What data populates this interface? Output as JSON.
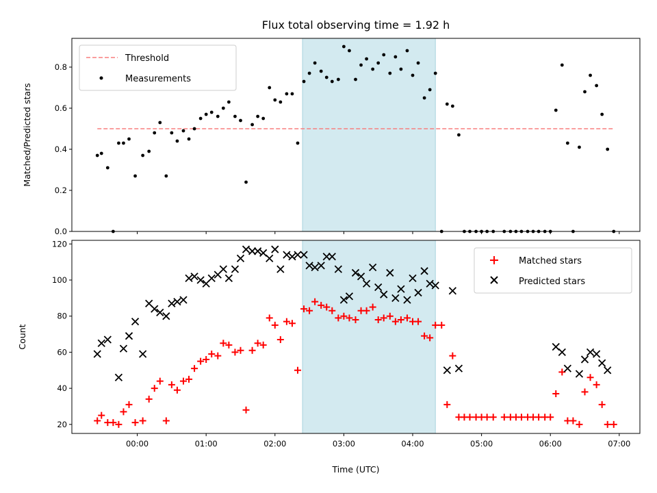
{
  "chart_data": [
    {
      "type": "scatter",
      "panel": "top",
      "title": "Flux total observing time = 1.92 h",
      "xlabel": "",
      "ylabel": "Matched/Predicted stars",
      "ylim": [
        0,
        0.94
      ],
      "yticks": [
        "0.0",
        "0.2",
        "0.4",
        "0.6",
        "0.8"
      ],
      "ytick_values": [
        0,
        0.2,
        0.4,
        0.6,
        0.8
      ],
      "x_units": "hours relative to 00:00 UTC",
      "xlim": [
        -0.95,
        7.3
      ],
      "shaded_span": [
        2.4,
        4.33
      ],
      "shade_color": "#d3eaf0",
      "threshold": {
        "name": "Threshold",
        "y": 0.5,
        "x_range": [
          -0.58,
          6.92
        ],
        "color": "#f87f7f"
      },
      "legend": [
        "Threshold",
        "Measurements"
      ],
      "legend_position": "upper-left",
      "series": [
        {
          "name": "Measurements",
          "color": "#000000",
          "points": [
            [
              -0.58,
              0.37
            ],
            [
              -0.52,
              0.38
            ],
            [
              -0.43,
              0.31
            ],
            [
              -0.35,
              0.0
            ],
            [
              -0.27,
              0.43
            ],
            [
              -0.2,
              0.43
            ],
            [
              -0.12,
              0.45
            ],
            [
              -0.03,
              0.27
            ],
            [
              0.08,
              0.37
            ],
            [
              0.17,
              0.39
            ],
            [
              0.25,
              0.48
            ],
            [
              0.33,
              0.53
            ],
            [
              0.42,
              0.27
            ],
            [
              0.5,
              0.48
            ],
            [
              0.58,
              0.44
            ],
            [
              0.67,
              0.49
            ],
            [
              0.75,
              0.45
            ],
            [
              0.83,
              0.5
            ],
            [
              0.92,
              0.55
            ],
            [
              1.0,
              0.57
            ],
            [
              1.08,
              0.58
            ],
            [
              1.17,
              0.56
            ],
            [
              1.25,
              0.6
            ],
            [
              1.33,
              0.63
            ],
            [
              1.42,
              0.56
            ],
            [
              1.5,
              0.54
            ],
            [
              1.58,
              0.24
            ],
            [
              1.67,
              0.52
            ],
            [
              1.75,
              0.56
            ],
            [
              1.83,
              0.55
            ],
            [
              1.92,
              0.7
            ],
            [
              2.0,
              0.64
            ],
            [
              2.08,
              0.63
            ],
            [
              2.17,
              0.67
            ],
            [
              2.25,
              0.67
            ],
            [
              2.33,
              0.43
            ],
            [
              2.42,
              0.73
            ],
            [
              2.5,
              0.77
            ],
            [
              2.58,
              0.82
            ],
            [
              2.67,
              0.78
            ],
            [
              2.75,
              0.75
            ],
            [
              2.83,
              0.73
            ],
            [
              2.92,
              0.74
            ],
            [
              3.0,
              0.9
            ],
            [
              3.08,
              0.88
            ],
            [
              3.17,
              0.74
            ],
            [
              3.25,
              0.81
            ],
            [
              3.33,
              0.84
            ],
            [
              3.42,
              0.79
            ],
            [
              3.5,
              0.82
            ],
            [
              3.58,
              0.86
            ],
            [
              3.67,
              0.77
            ],
            [
              3.75,
              0.85
            ],
            [
              3.83,
              0.79
            ],
            [
              3.92,
              0.88
            ],
            [
              4.0,
              0.76
            ],
            [
              4.08,
              0.82
            ],
            [
              4.17,
              0.65
            ],
            [
              4.25,
              0.69
            ],
            [
              4.33,
              0.77
            ],
            [
              4.42,
              0.0
            ],
            [
              4.5,
              0.62
            ],
            [
              4.58,
              0.61
            ],
            [
              4.67,
              0.47
            ],
            [
              4.75,
              0.0
            ],
            [
              4.83,
              0.0
            ],
            [
              4.92,
              0.0
            ],
            [
              5.0,
              0.0
            ],
            [
              5.08,
              0.0
            ],
            [
              5.17,
              0.0
            ],
            [
              5.33,
              0.0
            ],
            [
              5.42,
              0.0
            ],
            [
              5.5,
              0.0
            ],
            [
              5.58,
              0.0
            ],
            [
              5.67,
              0.0
            ],
            [
              5.75,
              0.0
            ],
            [
              5.83,
              0.0
            ],
            [
              5.92,
              0.0
            ],
            [
              6.0,
              0.0
            ],
            [
              6.08,
              0.59
            ],
            [
              6.17,
              0.81
            ],
            [
              6.25,
              0.43
            ],
            [
              6.33,
              0.0
            ],
            [
              6.42,
              0.41
            ],
            [
              6.5,
              0.68
            ],
            [
              6.58,
              0.76
            ],
            [
              6.67,
              0.71
            ],
            [
              6.75,
              0.57
            ],
            [
              6.83,
              0.4
            ],
            [
              6.92,
              0.0
            ]
          ]
        }
      ]
    },
    {
      "type": "scatter",
      "panel": "bottom",
      "title": "",
      "xlabel": "Time (UTC)",
      "ylabel": "Count",
      "ylim": [
        15,
        122
      ],
      "yticks": [
        "20",
        "40",
        "60",
        "80",
        "100",
        "120"
      ],
      "ytick_values": [
        20,
        40,
        60,
        80,
        100,
        120
      ],
      "x_units": "hours relative to 00:00 UTC",
      "xlim": [
        -0.95,
        7.3
      ],
      "xticks": [
        "00:00",
        "01:00",
        "02:00",
        "03:00",
        "04:00",
        "05:00",
        "06:00",
        "07:00"
      ],
      "xtick_values": [
        0,
        1,
        2,
        3,
        4,
        5,
        6,
        7
      ],
      "shaded_span": [
        2.4,
        4.33
      ],
      "shade_color": "#d3eaf0",
      "legend": [
        "Matched stars",
        "Predicted stars"
      ],
      "legend_position": "upper-right",
      "series": [
        {
          "name": "Matched stars",
          "marker": "+",
          "color": "#ff0000",
          "points": [
            [
              -0.58,
              22
            ],
            [
              -0.52,
              25
            ],
            [
              -0.43,
              21
            ],
            [
              -0.35,
              21
            ],
            [
              -0.27,
              20
            ],
            [
              -0.2,
              27
            ],
            [
              -0.12,
              31
            ],
            [
              -0.03,
              21
            ],
            [
              0.08,
              22
            ],
            [
              0.17,
              34
            ],
            [
              0.25,
              40
            ],
            [
              0.33,
              44
            ],
            [
              0.42,
              22
            ],
            [
              0.5,
              42
            ],
            [
              0.58,
              39
            ],
            [
              0.67,
              44
            ],
            [
              0.75,
              45
            ],
            [
              0.83,
              51
            ],
            [
              0.92,
              55
            ],
            [
              1.0,
              56
            ],
            [
              1.08,
              59
            ],
            [
              1.17,
              58
            ],
            [
              1.25,
              65
            ],
            [
              1.33,
              64
            ],
            [
              1.42,
              60
            ],
            [
              1.5,
              61
            ],
            [
              1.58,
              28
            ],
            [
              1.67,
              61
            ],
            [
              1.75,
              65
            ],
            [
              1.83,
              64
            ],
            [
              1.92,
              79
            ],
            [
              2.0,
              75
            ],
            [
              2.08,
              67
            ],
            [
              2.17,
              77
            ],
            [
              2.25,
              76
            ],
            [
              2.33,
              50
            ],
            [
              2.42,
              84
            ],
            [
              2.5,
              83
            ],
            [
              2.58,
              88
            ],
            [
              2.67,
              86
            ],
            [
              2.75,
              85
            ],
            [
              2.83,
              83
            ],
            [
              2.92,
              79
            ],
            [
              3.0,
              80
            ],
            [
              3.08,
              79
            ],
            [
              3.17,
              78
            ],
            [
              3.25,
              83
            ],
            [
              3.33,
              83
            ],
            [
              3.42,
              85
            ],
            [
              3.5,
              78
            ],
            [
              3.58,
              79
            ],
            [
              3.67,
              80
            ],
            [
              3.75,
              77
            ],
            [
              3.83,
              78
            ],
            [
              3.92,
              79
            ],
            [
              4.0,
              77
            ],
            [
              4.08,
              77
            ],
            [
              4.17,
              69
            ],
            [
              4.25,
              68
            ],
            [
              4.33,
              75
            ],
            [
              4.42,
              75
            ],
            [
              4.5,
              31
            ],
            [
              4.58,
              58
            ],
            [
              4.67,
              24
            ],
            [
              4.75,
              24
            ],
            [
              4.83,
              24
            ],
            [
              4.92,
              24
            ],
            [
              5.0,
              24
            ],
            [
              5.08,
              24
            ],
            [
              5.17,
              24
            ],
            [
              5.33,
              24
            ],
            [
              5.42,
              24
            ],
            [
              5.5,
              24
            ],
            [
              5.58,
              24
            ],
            [
              5.67,
              24
            ],
            [
              5.75,
              24
            ],
            [
              5.83,
              24
            ],
            [
              5.92,
              24
            ],
            [
              6.0,
              24
            ],
            [
              6.08,
              37
            ],
            [
              6.17,
              49
            ],
            [
              6.25,
              22
            ],
            [
              6.33,
              22
            ],
            [
              6.42,
              20
            ],
            [
              6.5,
              38
            ],
            [
              6.58,
              46
            ],
            [
              6.67,
              42
            ],
            [
              6.75,
              31
            ],
            [
              6.83,
              20
            ],
            [
              6.92,
              20
            ]
          ]
        },
        {
          "name": "Predicted stars",
          "marker": "x",
          "color": "#000000",
          "points": [
            [
              -0.58,
              59
            ],
            [
              -0.52,
              65
            ],
            [
              -0.43,
              67
            ],
            [
              -0.27,
              46
            ],
            [
              -0.2,
              62
            ],
            [
              -0.12,
              69
            ],
            [
              -0.03,
              77
            ],
            [
              0.08,
              59
            ],
            [
              0.17,
              87
            ],
            [
              0.25,
              84
            ],
            [
              0.33,
              82
            ],
            [
              0.42,
              80
            ],
            [
              0.5,
              87
            ],
            [
              0.58,
              88
            ],
            [
              0.67,
              89
            ],
            [
              0.75,
              101
            ],
            [
              0.83,
              102
            ],
            [
              0.92,
              100
            ],
            [
              1.0,
              98
            ],
            [
              1.08,
              101
            ],
            [
              1.17,
              103
            ],
            [
              1.25,
              106
            ],
            [
              1.33,
              101
            ],
            [
              1.42,
              106
            ],
            [
              1.5,
              112
            ],
            [
              1.58,
              117
            ],
            [
              1.67,
              116
            ],
            [
              1.75,
              116
            ],
            [
              1.83,
              115
            ],
            [
              1.92,
              112
            ],
            [
              2.0,
              117
            ],
            [
              2.08,
              106
            ],
            [
              2.17,
              114
            ],
            [
              2.25,
              113
            ],
            [
              2.33,
              114
            ],
            [
              2.42,
              114
            ],
            [
              2.5,
              108
            ],
            [
              2.58,
              107
            ],
            [
              2.67,
              108
            ],
            [
              2.75,
              113
            ],
            [
              2.83,
              113
            ],
            [
              2.92,
              106
            ],
            [
              3.0,
              89
            ],
            [
              3.08,
              91
            ],
            [
              3.17,
              104
            ],
            [
              3.25,
              102
            ],
            [
              3.33,
              98
            ],
            [
              3.42,
              107
            ],
            [
              3.5,
              96
            ],
            [
              3.58,
              92
            ],
            [
              3.67,
              104
            ],
            [
              3.75,
              90
            ],
            [
              3.83,
              95
            ],
            [
              3.92,
              89
            ],
            [
              4.0,
              101
            ],
            [
              4.08,
              93
            ],
            [
              4.17,
              105
            ],
            [
              4.25,
              98
            ],
            [
              4.33,
              97
            ],
            [
              4.5,
              50
            ],
            [
              4.58,
              94
            ],
            [
              4.67,
              51
            ],
            [
              6.08,
              63
            ],
            [
              6.17,
              60
            ],
            [
              6.25,
              51
            ],
            [
              6.42,
              48
            ],
            [
              6.5,
              56
            ],
            [
              6.58,
              60
            ],
            [
              6.67,
              59
            ],
            [
              6.75,
              54
            ],
            [
              6.83,
              50
            ]
          ]
        }
      ]
    }
  ]
}
